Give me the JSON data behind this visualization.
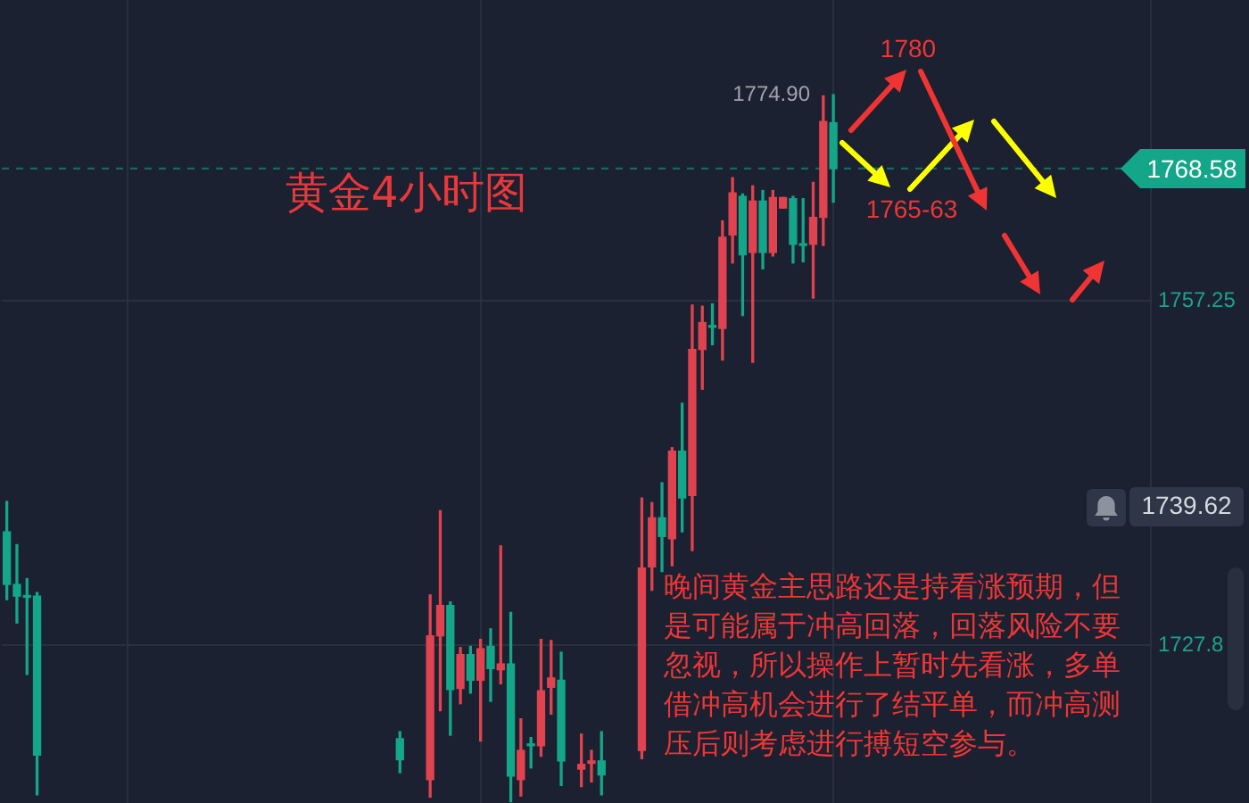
{
  "chart_data": {
    "type": "candlestick",
    "title": "黄金4小时图",
    "categories": [
      null,
      null,
      null,
      null,
      null,
      null,
      null,
      null,
      null,
      null,
      null,
      null,
      null,
      null,
      null,
      null,
      null,
      null,
      null,
      null,
      null,
      null,
      null,
      null,
      null,
      null,
      null,
      null,
      null,
      null,
      null,
      null,
      null,
      null,
      null,
      null,
      null,
      null,
      null,
      null,
      null,
      null,
      null,
      null,
      null,
      null,
      null,
      null,
      null,
      null,
      null,
      null,
      null,
      null,
      null,
      null,
      null,
      null,
      null,
      null,
      null,
      null,
      null,
      null,
      null,
      null,
      null,
      null,
      null,
      null,
      null,
      null,
      null,
      null,
      null,
      null,
      null,
      null,
      null,
      null,
      null,
      null,
      null,
      null,
      null,
      null,
      null,
      null,
      null,
      null,
      null,
      null,
      null,
      null,
      null,
      null,
      null,
      null,
      null,
      null,
      null,
      null,
      null,
      null,
      null,
      null,
      null,
      null,
      null,
      null,
      null,
      null,
      null,
      null
    ],
    "ohlc": [
      [
        1737.5,
        1740.1,
        1731.7,
        1733.0
      ],
      [
        1733.0,
        1736.4,
        1729.7,
        1732.0
      ],
      [
        1732.0,
        1733.5,
        1725.3,
        1731.9
      ],
      [
        1732.0,
        1732.3,
        1715.0,
        1718.4
      ],
      null,
      null,
      null,
      null,
      null,
      null,
      null,
      null,
      null,
      null,
      null,
      null,
      null,
      null,
      null,
      null,
      null,
      null,
      null,
      null,
      null,
      null,
      null,
      null,
      null,
      null,
      null,
      null,
      null,
      null,
      null,
      null,
      null,
      null,
      null,
      [
        1719.8,
        1720.4,
        1716.9,
        1718.0
      ],
      null,
      null,
      [
        1716.3,
        1732.1,
        1714.8,
        1728.6
      ],
      [
        1728.6,
        1739.3,
        1722.2,
        1731.2
      ],
      [
        1731.2,
        1731.5,
        1720.1,
        1724.0
      ],
      [
        1724.1,
        1727.6,
        1722.8,
        1727.0
      ],
      [
        1727.0,
        1727.7,
        1723.7,
        1724.8
      ],
      [
        1724.8,
        1728.3,
        1719.6,
        1727.5
      ],
      [
        1727.7,
        1729.2,
        1723.0,
        1725.8
      ],
      [
        1725.7,
        1736.3,
        1724.5,
        1726.2
      ],
      [
        1726.2,
        1730.6,
        1714.4,
        1716.6
      ],
      [
        1716.3,
        1721.5,
        1714.9,
        1718.8
      ],
      [
        1719.3,
        1719.9,
        1717.3,
        1719.2
      ],
      [
        1719.2,
        1728.3,
        1718.3,
        1723.9
      ],
      [
        1724.2,
        1728.2,
        1721.9,
        1725.0
      ],
      [
        1724.8,
        1727.2,
        1715.8,
        1717.9
      ],
      null,
      [
        1717.2,
        1720.2,
        1715.7,
        1717.6
      ],
      [
        1717.7,
        1718.8,
        1716.1,
        1717.9
      ],
      [
        1717.9,
        1720.4,
        1715.0,
        1716.7
      ],
      null,
      null,
      null,
      [
        1718.8,
        1740.4,
        1718.1,
        1734.4
      ],
      [
        1734.5,
        1740.0,
        1732.5,
        1738.7
      ],
      [
        1738.7,
        1741.7,
        1734.1,
        1737.1
      ],
      [
        1736.9,
        1744.7,
        1734.6,
        1744.4
      ],
      [
        1744.4,
        1748.5,
        1737.5,
        1740.4
      ],
      [
        1740.6,
        1756.9,
        1735.9,
        1753.1
      ],
      [
        1753.1,
        1756.8,
        1749.7,
        1755.4
      ],
      [
        1755.1,
        1757.0,
        1753.5,
        1755.0
      ],
      [
        1754.9,
        1764.1,
        1752.2,
        1762.7
      ],
      [
        1762.9,
        1767.8,
        1760.5,
        1766.5
      ],
      [
        1766.2,
        1766.4,
        1756.0,
        1761.2
      ],
      [
        1761.4,
        1767.1,
        1752.0,
        1765.8
      ],
      [
        1765.8,
        1766.7,
        1760.0,
        1761.4
      ],
      [
        1761.4,
        1766.7,
        1761.1,
        1766.1
      ],
      [
        1765.2,
        1766.1,
        1765.2,
        1766.1
      ],
      [
        1766.0,
        1766.2,
        1760.5,
        1762.1
      ],
      [
        1762.1,
        1766.0,
        1760.6,
        1762.0
      ],
      [
        1762.1,
        1767.4,
        1757.5,
        1764.4
      ],
      [
        1764.4,
        1774.8,
        1762.0,
        1772.6
      ],
      [
        1772.5,
        1774.9,
        1765.7,
        1768.58
      ],
      null,
      null,
      null,
      null,
      null,
      null,
      null,
      null,
      null,
      null,
      null,
      null,
      null,
      null,
      null,
      null,
      null,
      null,
      null,
      null,
      null,
      null,
      null,
      null,
      null,
      null,
      null,
      null,
      null,
      null,
      null
    ],
    "colors": [
      "#13a689",
      "#13a689",
      "#13a689",
      "#13a689",
      null,
      null,
      null,
      null,
      null,
      null,
      null,
      null,
      null,
      null,
      null,
      null,
      null,
      null,
      null,
      null,
      null,
      null,
      null,
      null,
      null,
      null,
      null,
      null,
      null,
      null,
      null,
      null,
      null,
      null,
      null,
      null,
      null,
      null,
      null,
      "#13a689",
      null,
      null,
      "#e0434f",
      "#e0434f",
      "#13a689",
      "#e0434f",
      "#13a689",
      "#e0434f",
      "#13a689",
      "#e0434f",
      "#13a689",
      "#e0434f",
      "#13a689",
      "#e0434f",
      "#e0434f",
      "#13a689",
      null,
      "#e0434f",
      "#e0434f",
      "#13a689",
      null,
      null,
      null,
      "#e0434f",
      "#e0434f",
      "#13a689",
      "#e0434f",
      "#13a689",
      "#e0434f",
      "#e0434f",
      "#13a689",
      "#e0434f",
      "#e0434f",
      "#13a689",
      "#e0434f",
      "#13a689",
      "#e0434f",
      "#e0434f",
      "#13a689",
      "#13a689",
      "#e0434f",
      "#e0434f",
      "#13a689",
      null,
      null,
      null,
      null,
      null,
      null,
      null,
      null,
      null,
      null,
      null,
      null,
      null,
      null,
      null,
      null,
      null,
      null,
      null,
      null,
      null,
      null,
      null,
      null,
      null,
      null,
      null,
      null,
      null,
      null,
      null
    ],
    "ylim": [
      1714.3,
      1783.0
    ],
    "yticks": [
      1727.8,
      1757.25
    ],
    "grid": true,
    "tick_labels": "y",
    "ref_lines": [
      {
        "axis": "y",
        "value": 1768.58,
        "label": "1768.58",
        "color": "#13a689",
        "line_style": "dashed"
      }
    ],
    "annotations": [
      "1774.90",
      "1780",
      "1765-63",
      "1739.62",
      "晚间黄金主思路还是持看涨预期，但是可能属于冲高回落，回落风险不要忽视，所以操作上暂时先看涨，多单借冲高机会进行了结平单，而冲高测压后则考虑进行搏短空参与。"
    ]
  }
}
